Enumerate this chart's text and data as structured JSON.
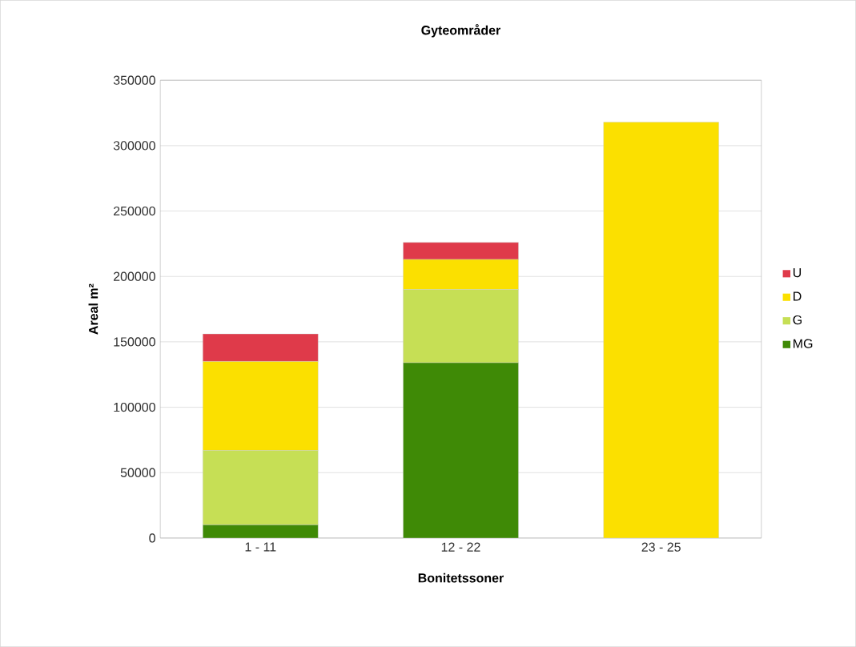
{
  "chart_data": {
    "type": "bar",
    "title": "Gyteområder",
    "xlabel": "Bonitetssoner",
    "ylabel": "Areal m²",
    "categories": [
      "1 - 11",
      "12 - 22",
      "23 - 25"
    ],
    "stacked": true,
    "series": [
      {
        "name": "MG",
        "color": "#3f8a06",
        "values": [
          10000,
          134000,
          null
        ]
      },
      {
        "name": "G",
        "color": "#c6df55",
        "values": [
          57000,
          56000,
          null
        ]
      },
      {
        "name": "D",
        "color": "#fbe000",
        "values": [
          68000,
          23000,
          318000
        ]
      },
      {
        "name": "U",
        "color": "#df3a4a",
        "values": [
          21000,
          13000,
          null
        ]
      }
    ],
    "ylim": [
      0,
      350000
    ],
    "yticks": [
      0,
      50000,
      100000,
      150000,
      200000,
      250000,
      300000,
      350000
    ],
    "grid": "y",
    "legend": "right"
  }
}
